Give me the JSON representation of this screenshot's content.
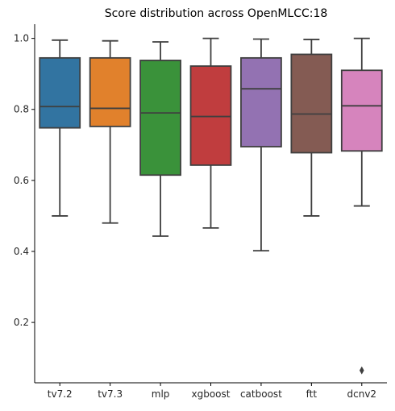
{
  "chart_data": {
    "type": "box",
    "title": "Score distribution across OpenMLCC:18",
    "xlabel": "",
    "ylabel": "",
    "ylim": [
      0.03,
      1.04
    ],
    "yticks": [
      0.2,
      0.4,
      0.6,
      0.8,
      1.0
    ],
    "ytick_labels": [
      "0.2",
      "0.4",
      "0.6",
      "0.8",
      "1.0"
    ],
    "grid": false,
    "legend": "none",
    "categories": [
      "tv7.2",
      "tv7.3",
      "mlp",
      "xgboost",
      "catboost",
      "ftt",
      "dcnv2"
    ],
    "boxes": [
      {
        "category": "tv7.2",
        "min": 0.5,
        "q1": 0.748,
        "median": 0.808,
        "q3": 0.945,
        "max": 0.995,
        "outliers": [],
        "color": "#3274a1"
      },
      {
        "category": "tv7.3",
        "min": 0.48,
        "q1": 0.752,
        "median": 0.803,
        "q3": 0.945,
        "max": 0.993,
        "outliers": [],
        "color": "#e1812c"
      },
      {
        "category": "mlp",
        "min": 0.443,
        "q1": 0.615,
        "median": 0.79,
        "q3": 0.938,
        "max": 0.99,
        "outliers": [],
        "color": "#3a923a"
      },
      {
        "category": "xgboost",
        "min": 0.466,
        "q1": 0.643,
        "median": 0.78,
        "q3": 0.922,
        "max": 1.0,
        "outliers": [],
        "color": "#c03d3e"
      },
      {
        "category": "catboost",
        "min": 0.402,
        "q1": 0.695,
        "median": 0.858,
        "q3": 0.945,
        "max": 0.998,
        "outliers": [],
        "color": "#9372b2"
      },
      {
        "category": "ftt",
        "min": 0.5,
        "q1": 0.678,
        "median": 0.787,
        "q3": 0.955,
        "max": 0.997,
        "outliers": [],
        "color": "#845b53"
      },
      {
        "category": "dcnv2",
        "min": 0.528,
        "q1": 0.683,
        "median": 0.81,
        "q3": 0.91,
        "max": 1.0,
        "outliers": [
          0.065
        ],
        "color": "#d684bd"
      }
    ]
  }
}
